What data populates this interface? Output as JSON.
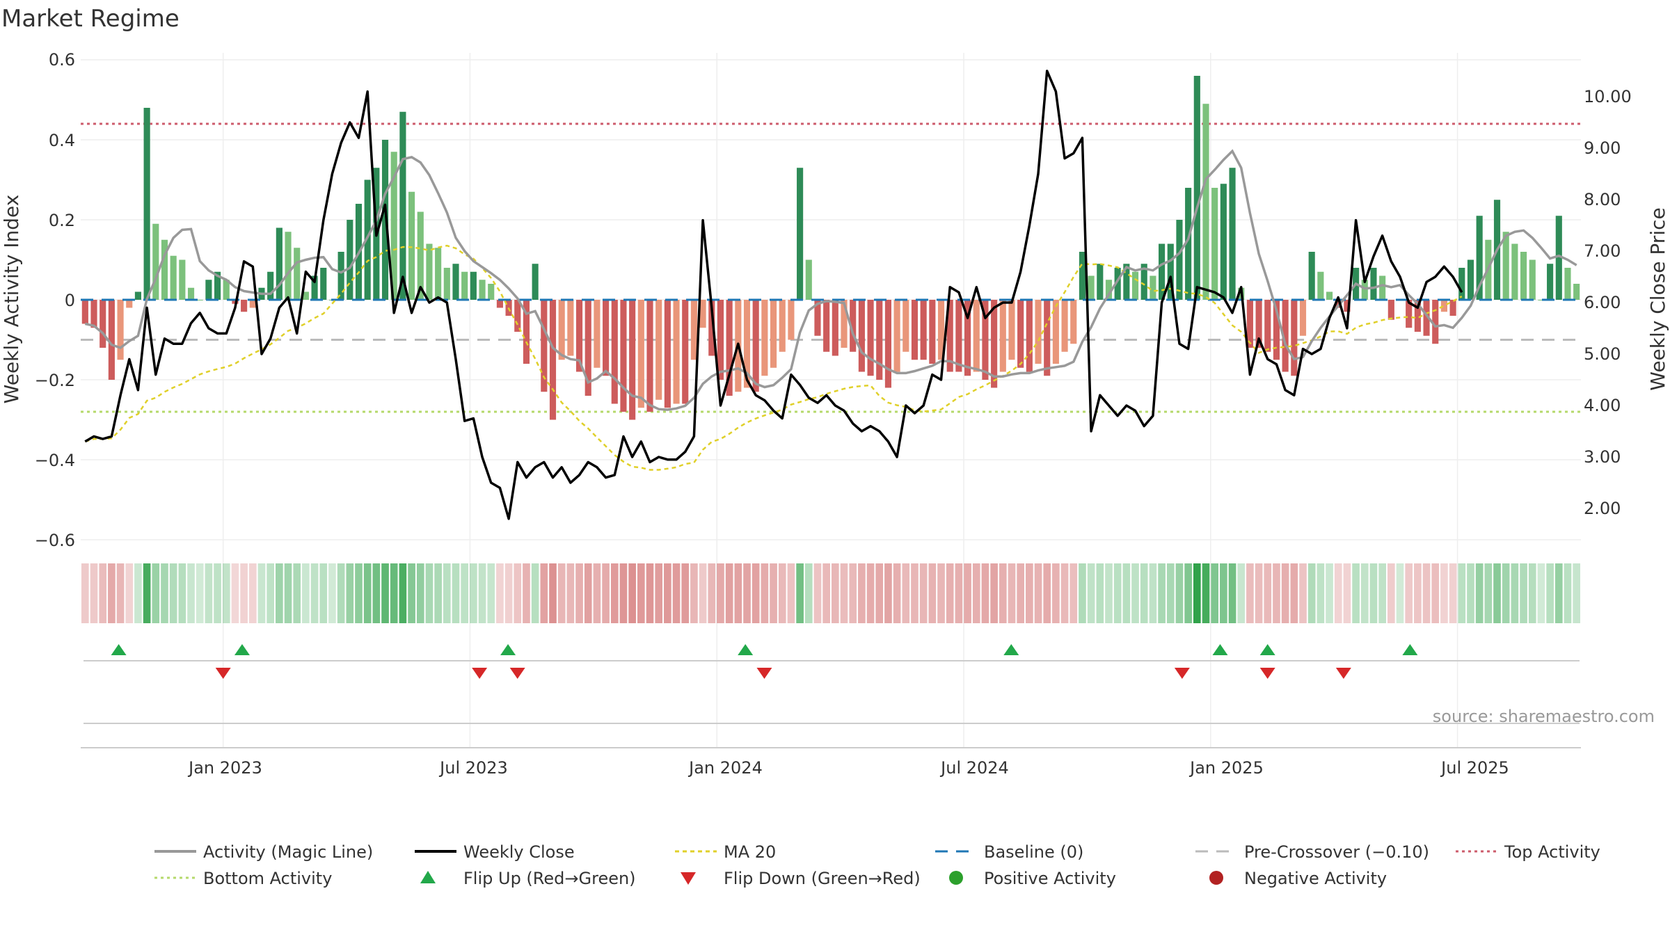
{
  "chart_data": {
    "type": "bar",
    "title": "Market Regime",
    "ylabel": "Weekly Activity Index",
    "y2label": "Weekly Close Price",
    "ylim": [
      -0.6,
      0.6
    ],
    "y2lim": [
      1.5,
      10.8
    ],
    "yticks": [
      "0.6",
      "0.4",
      "0.2",
      "0",
      "−0.2",
      "−0.4",
      "−0.6"
    ],
    "y2ticks": [
      "10.00",
      "9.00",
      "8.00",
      "7.00",
      "6.00",
      "5.00",
      "4.00",
      "3.00",
      "2.00"
    ],
    "x_ticks": [
      "Jan 2023",
      "Jul 2023",
      "Jan 2024",
      "Jul 2024",
      "Jan 2025",
      "Jul 2025"
    ],
    "source": "source: sharemaestro.com",
    "levels": {
      "top": 0.44,
      "bottom": -0.28,
      "pre_crossover": -0.1,
      "baseline": 0
    },
    "x_range": [
      0,
      158
    ],
    "tick_positions": [
      15,
      41,
      67,
      93,
      119,
      145
    ],
    "colors": {
      "pos_strong": "#2e8b57",
      "pos_light": "#7cc17c",
      "neg_strong": "#cd5c5c",
      "neg_light": "#e9967a",
      "close": "#000000",
      "magic": "#999999",
      "ma20": "#e0d02a",
      "baseline": "#1f77b4",
      "pre": "#bbbbbb",
      "top": "#cd5c6c",
      "bottom": "#b5d96b",
      "flip_up": "#22a84a",
      "flip_down": "#d62728",
      "pos_dot": "#2ca02c",
      "neg_dot": "#b22222"
    },
    "activity": [
      -0.06,
      -0.07,
      -0.12,
      -0.2,
      -0.15,
      -0.02,
      0.02,
      0.48,
      0.19,
      0.15,
      0.11,
      0.1,
      0.03,
      0.0,
      0.05,
      0.07,
      0.05,
      -0.01,
      -0.03,
      -0.02,
      0.03,
      0.07,
      0.18,
      0.17,
      0.13,
      0.02,
      0.06,
      0.08,
      0.0,
      0.12,
      0.2,
      0.24,
      0.3,
      0.33,
      0.4,
      0.37,
      0.47,
      0.27,
      0.22,
      0.14,
      0.13,
      0.08,
      0.09,
      0.07,
      0.07,
      0.05,
      0.04,
      -0.02,
      -0.04,
      -0.08,
      -0.16,
      0.09,
      -0.23,
      -0.3,
      -0.15,
      -0.14,
      -0.18,
      -0.24,
      -0.17,
      -0.19,
      -0.26,
      -0.28,
      -0.3,
      -0.27,
      -0.28,
      -0.25,
      -0.27,
      -0.26,
      -0.26,
      -0.15,
      -0.07,
      -0.14,
      -0.2,
      -0.24,
      -0.23,
      -0.22,
      -0.23,
      -0.19,
      -0.17,
      -0.13,
      -0.1,
      0.33,
      0.1,
      -0.09,
      -0.13,
      -0.14,
      -0.12,
      -0.13,
      -0.18,
      -0.19,
      -0.2,
      -0.22,
      -0.18,
      -0.13,
      -0.15,
      -0.15,
      -0.16,
      -0.15,
      -0.18,
      -0.18,
      -0.19,
      -0.18,
      -0.2,
      -0.22,
      -0.18,
      -0.15,
      -0.17,
      -0.18,
      -0.16,
      -0.19,
      -0.16,
      -0.13,
      -0.11,
      0.12,
      0.06,
      0.09,
      0.05,
      0.08,
      0.09,
      0.07,
      0.09,
      0.06,
      0.14,
      0.14,
      0.2,
      0.28,
      0.56,
      0.49,
      0.28,
      0.29,
      0.33,
      0.03,
      -0.12,
      -0.12,
      -0.13,
      -0.15,
      -0.18,
      -0.19,
      -0.09,
      0.12,
      0.07,
      0.02,
      -0.02,
      -0.03,
      0.08,
      0.05,
      0.08,
      0.06,
      -0.05,
      0.0,
      -0.07,
      -0.08,
      -0.09,
      -0.11,
      -0.03,
      -0.04,
      0.08,
      0.1,
      0.21,
      0.15,
      0.25,
      0.17,
      0.14,
      0.12,
      0.1,
      0.0,
      0.09,
      0.21,
      0.08,
      0.04
    ],
    "close": [
      3.3,
      3.4,
      3.35,
      3.4,
      4.2,
      4.9,
      4.3,
      5.9,
      4.6,
      5.3,
      5.2,
      5.2,
      5.6,
      5.8,
      5.5,
      5.4,
      5.4,
      5.9,
      6.8,
      6.7,
      5.0,
      5.3,
      5.9,
      6.1,
      5.4,
      6.6,
      6.4,
      7.6,
      8.5,
      9.1,
      9.5,
      9.2,
      10.1,
      7.3,
      7.9,
      5.8,
      6.5,
      5.8,
      6.3,
      6.0,
      6.1,
      6.0,
      4.9,
      3.7,
      3.75,
      3.0,
      2.5,
      2.4,
      1.8,
      2.9,
      2.6,
      2.8,
      2.9,
      2.6,
      2.8,
      2.5,
      2.65,
      2.9,
      2.8,
      2.6,
      2.65,
      3.4,
      3.0,
      3.3,
      2.9,
      3.0,
      2.95,
      2.95,
      3.1,
      3.4,
      7.6,
      5.9,
      4.0,
      4.6,
      5.2,
      4.5,
      4.2,
      4.1,
      3.9,
      3.75,
      4.6,
      4.4,
      4.15,
      4.05,
      4.2,
      4.0,
      3.9,
      3.65,
      3.5,
      3.6,
      3.5,
      3.3,
      3.0,
      4.0,
      3.85,
      4.0,
      4.6,
      4.5,
      6.3,
      6.2,
      5.7,
      6.3,
      5.7,
      5.9,
      6.0,
      6.0,
      6.6,
      7.5,
      8.5,
      10.5,
      10.1,
      8.8,
      8.9,
      9.2,
      3.5,
      4.2,
      4.0,
      3.8,
      4.0,
      3.9,
      3.6,
      3.8,
      6.0,
      6.5,
      5.2,
      5.1,
      6.3,
      6.25,
      6.2,
      6.1,
      5.8,
      6.3,
      4.6,
      5.3,
      4.9,
      4.8,
      4.3,
      4.2,
      5.1,
      5.0,
      5.1,
      5.7,
      6.1,
      5.5,
      7.6,
      6.4,
      6.9,
      7.3,
      6.8,
      6.5,
      6.0,
      5.9,
      6.4,
      6.5,
      6.7,
      6.5,
      6.2
    ],
    "flip_up": [
      4,
      17,
      45,
      70,
      98,
      120,
      125,
      140
    ],
    "flip_down": [
      15,
      42,
      46,
      72,
      116,
      125,
      133
    ]
  },
  "legend": {
    "magic": "Activity (Magic Line)",
    "close": "Weekly Close",
    "ma20": "MA 20",
    "baseline": "Baseline (0)",
    "pre": "Pre-Crossover (−0.10)",
    "top": "Top Activity",
    "bottom": "Bottom Activity",
    "flip_up": "Flip Up (Red→Green)",
    "flip_down": "Flip Down (Green→Red)",
    "pos": "Positive Activity",
    "neg": "Negative Activity"
  }
}
